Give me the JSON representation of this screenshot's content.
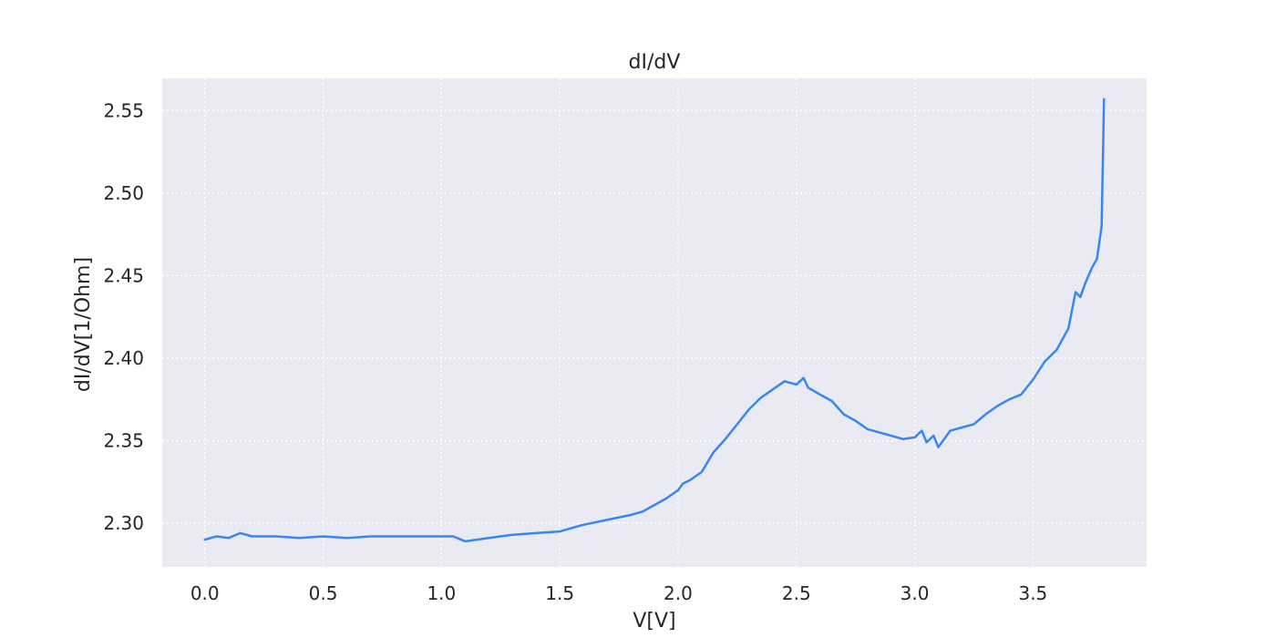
{
  "chart_data": {
    "type": "line",
    "title": "dI/dV",
    "xlabel": "V[V]",
    "ylabel": "dI/dV[1/Ohm]",
    "xlim": [
      -0.18,
      3.98
    ],
    "ylim": [
      2.2735,
      2.5695
    ],
    "xticks": [
      0.0,
      0.5,
      1.0,
      1.5,
      2.0,
      2.5,
      3.0,
      3.5
    ],
    "xtick_labels": [
      "0.0",
      "0.5",
      "1.0",
      "1.5",
      "2.0",
      "2.5",
      "3.0",
      "3.5"
    ],
    "yticks": [
      2.3,
      2.35,
      2.4,
      2.45,
      2.5,
      2.55
    ],
    "ytick_labels": [
      "2.30",
      "2.35",
      "2.40",
      "2.45",
      "2.50",
      "2.55"
    ],
    "grid": true,
    "background": "#eaeaf2",
    "grid_color": "#ffffff",
    "line_color": "#3a86f0",
    "series": [
      {
        "x": [
          0.0,
          0.05,
          0.1,
          0.15,
          0.2,
          0.3,
          0.4,
          0.5,
          0.6,
          0.7,
          0.8,
          0.9,
          1.0,
          1.05,
          1.1,
          1.15,
          1.2,
          1.3,
          1.4,
          1.5,
          1.55,
          1.6,
          1.7,
          1.8,
          1.85,
          1.9,
          1.95,
          2.0,
          2.02,
          2.05,
          2.1,
          2.15,
          2.2,
          2.25,
          2.3,
          2.35,
          2.4,
          2.45,
          2.5,
          2.53,
          2.55,
          2.6,
          2.65,
          2.7,
          2.75,
          2.8,
          2.85,
          2.9,
          2.95,
          3.0,
          3.03,
          3.05,
          3.08,
          3.1,
          3.15,
          3.2,
          3.25,
          3.3,
          3.35,
          3.4,
          3.45,
          3.5,
          3.55,
          3.6,
          3.65,
          3.68,
          3.7,
          3.72,
          3.75,
          3.77,
          3.79,
          3.8
        ],
        "y": [
          2.29,
          2.292,
          2.291,
          2.294,
          2.292,
          2.292,
          2.291,
          2.292,
          2.291,
          2.292,
          2.292,
          2.292,
          2.292,
          2.292,
          2.289,
          2.29,
          2.291,
          2.293,
          2.294,
          2.295,
          2.297,
          2.299,
          2.302,
          2.305,
          2.307,
          2.311,
          2.315,
          2.32,
          2.324,
          2.326,
          2.331,
          2.343,
          2.351,
          2.36,
          2.369,
          2.376,
          2.381,
          2.386,
          2.384,
          2.388,
          2.382,
          2.378,
          2.374,
          2.366,
          2.362,
          2.357,
          2.355,
          2.353,
          2.351,
          2.352,
          2.356,
          2.349,
          2.353,
          2.346,
          2.356,
          2.358,
          2.36,
          2.366,
          2.371,
          2.375,
          2.378,
          2.387,
          2.398,
          2.405,
          2.418,
          2.44,
          2.437,
          2.445,
          2.455,
          2.46,
          2.48,
          2.557
        ]
      }
    ]
  }
}
